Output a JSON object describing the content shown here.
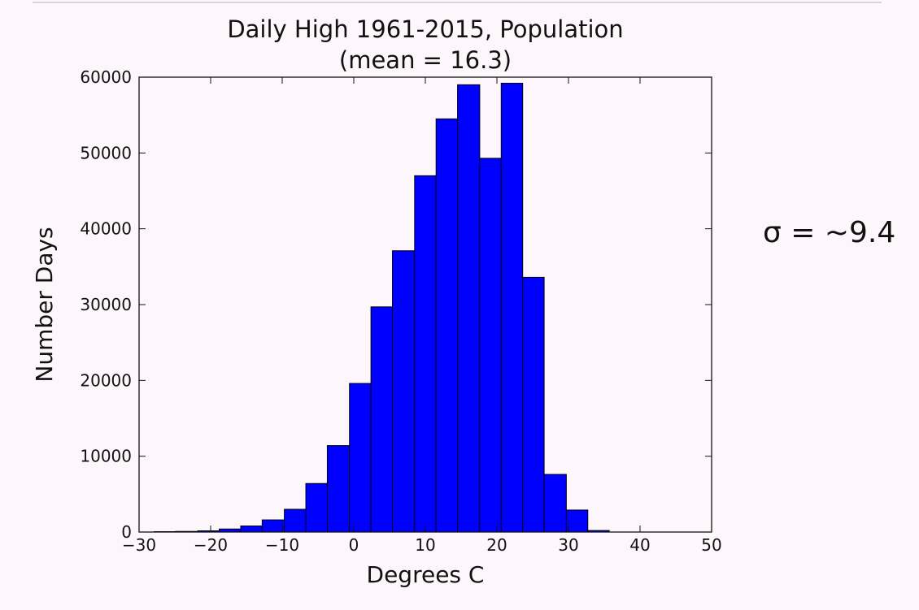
{
  "annotation": {
    "sigma": "σ = ~9.4"
  },
  "chart_data": {
    "type": "bar",
    "title": "Daily High 1961-2015, Population",
    "subtitle": "(mean = 16.3)",
    "xlabel": "Degrees C",
    "ylabel": "Number Days",
    "xlim": [
      -30,
      50
    ],
    "ylim": [
      0,
      60000
    ],
    "xticks": [
      -30,
      -20,
      -10,
      0,
      10,
      20,
      30,
      40,
      50
    ],
    "xtick_labels": [
      "−30",
      "−20",
      "−10",
      "0",
      "10",
      "20",
      "30",
      "40",
      "50"
    ],
    "yticks": [
      0,
      10000,
      20000,
      30000,
      40000,
      50000,
      60000
    ],
    "ytick_labels": [
      "0",
      "10000",
      "20000",
      "30000",
      "40000",
      "50000",
      "60000"
    ],
    "bin_edges": [
      -27.9,
      -24.9,
      -21.8,
      -18.8,
      -15.8,
      -12.8,
      -9.7,
      -6.7,
      -3.7,
      -0.6,
      2.4,
      5.4,
      8.5,
      11.5,
      14.5,
      17.6,
      20.6,
      23.6,
      26.6,
      29.7,
      32.7,
      35.7,
      38.8,
      41.8
    ],
    "values": [
      50,
      80,
      160,
      400,
      800,
      1600,
      3000,
      6400,
      11400,
      19600,
      29700,
      37100,
      47000,
      54500,
      59000,
      49300,
      59200,
      33600,
      7600,
      2900,
      200,
      0,
      0
    ],
    "bar_color": "#0000ff",
    "grid": false
  }
}
